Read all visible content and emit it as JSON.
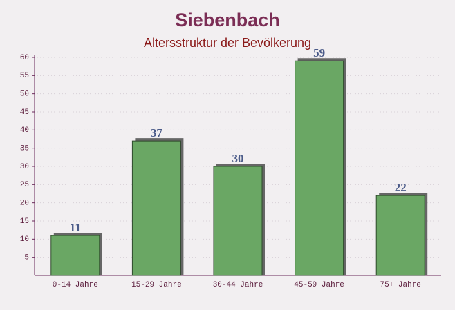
{
  "chart_data": {
    "type": "bar",
    "title": "Siebenbach",
    "subtitle": "Altersstruktur der Bevölkerung",
    "categories": [
      "0-14 Jahre",
      "15-29 Jahre",
      "30-44 Jahre",
      "45-59 Jahre",
      "75+ Jahre"
    ],
    "values": [
      11,
      37,
      30,
      59,
      22
    ],
    "color": "#6aa764",
    "ylim": [
      0,
      60
    ],
    "yticks": [
      5,
      10,
      15,
      20,
      25,
      30,
      35,
      40,
      45,
      50,
      55,
      60
    ]
  }
}
